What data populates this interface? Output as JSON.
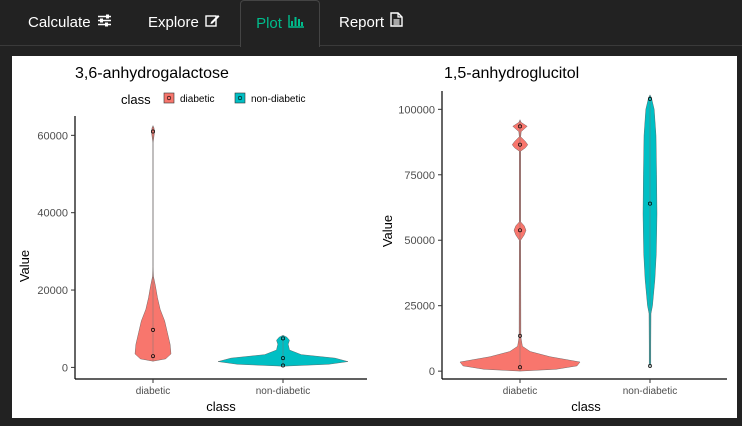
{
  "nav": {
    "tabs": [
      {
        "label": "Calculate",
        "icon": "sliders-icon"
      },
      {
        "label": "Explore",
        "icon": "edit-icon"
      },
      {
        "label": "Plot",
        "icon": "bar-chart-icon"
      },
      {
        "label": "Report",
        "icon": "document-icon"
      }
    ],
    "active_tab": "Plot",
    "accent_color": "#00bc8c"
  },
  "legend": {
    "title": "class",
    "items": [
      "diabetic",
      "non-diabetic"
    ]
  },
  "chart_data": [
    {
      "type": "violin",
      "title": "3,6-anhydrogalactose",
      "xlabel": "class",
      "ylabel": "Value",
      "categories": [
        "diabetic",
        "non-diabetic"
      ],
      "ylim": [
        -3000,
        65000
      ],
      "yticks": [
        0,
        20000,
        40000,
        60000
      ],
      "ytick_labels": [
        "0",
        "20000",
        "40000",
        "60000"
      ],
      "colors": [
        "#f8766d",
        "#00bfc4"
      ],
      "points": [
        {
          "category": "diabetic",
          "values": [
            2900,
            9700,
            61000
          ]
        },
        {
          "category": "non-diabetic",
          "values": [
            500,
            2400,
            7500
          ]
        }
      ]
    },
    {
      "type": "violin",
      "title": "1,5-anhydroglucitol",
      "xlabel": "class",
      "ylabel": "Value",
      "categories": [
        "diabetic",
        "non-diabetic"
      ],
      "ylim": [
        -3000,
        107000
      ],
      "yticks": [
        0,
        25000,
        50000,
        75000,
        100000
      ],
      "ytick_labels": [
        "0",
        "25000",
        "50000",
        "75000",
        "100000"
      ],
      "colors": [
        "#f8766d",
        "#00bfc4"
      ],
      "points": [
        {
          "category": "diabetic",
          "values": [
            1500,
            13500,
            53800,
            86500,
            93500
          ]
        },
        {
          "category": "non-diabetic",
          "values": [
            2000,
            64000,
            104000
          ]
        }
      ]
    }
  ]
}
